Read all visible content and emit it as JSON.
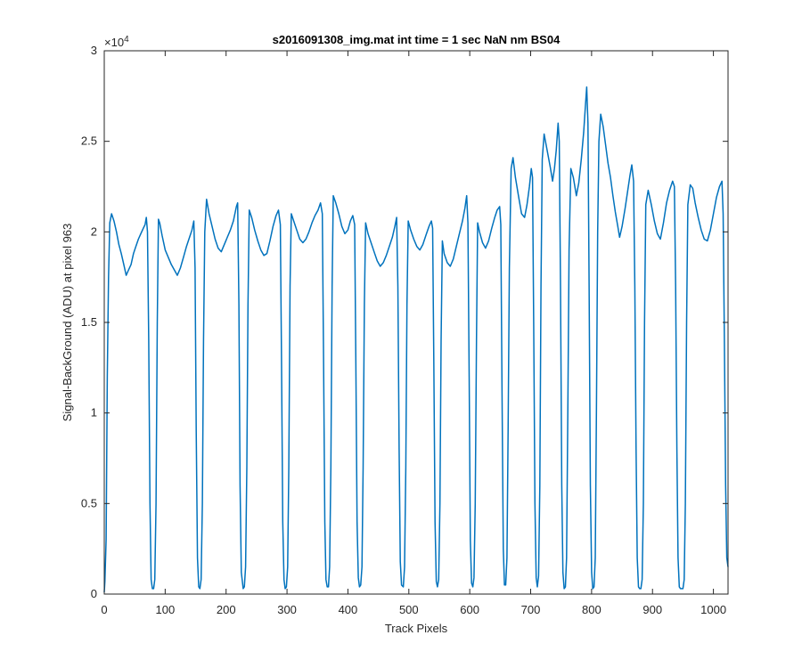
{
  "chart_data": {
    "type": "line",
    "title": "s2016091308_img.mat int time = 1 sec  NaN nm BS04",
    "xlabel": "Track Pixels",
    "ylabel": "Signal-BackGround (ADU) at pixel 963",
    "y_multiplier_label": "×10",
    "y_multiplier_exponent": "4",
    "xlim": [
      0,
      1024
    ],
    "ylim": [
      0,
      30000
    ],
    "x_ticks": [
      0,
      100,
      200,
      300,
      400,
      500,
      600,
      700,
      800,
      900,
      1000
    ],
    "y_ticks": [
      0,
      5000,
      10000,
      15000,
      20000,
      25000,
      30000
    ],
    "x_tick_labels": [
      "0",
      "100",
      "200",
      "300",
      "400",
      "500",
      "600",
      "700",
      "800",
      "900",
      "1000"
    ],
    "y_tick_labels": [
      "0",
      "0.5",
      "1",
      "1.5",
      "2",
      "2.5",
      "3"
    ],
    "grid": false,
    "series": [
      {
        "color": "#0072BD",
        "points": [
          [
            0,
            100
          ],
          [
            1,
            700
          ],
          [
            3,
            3000
          ],
          [
            5,
            12000
          ],
          [
            7,
            17500
          ],
          [
            9,
            20500
          ],
          [
            12,
            21000
          ],
          [
            16,
            20600
          ],
          [
            20,
            20000
          ],
          [
            24,
            19300
          ],
          [
            28,
            18800
          ],
          [
            32,
            18200
          ],
          [
            36,
            17600
          ],
          [
            40,
            17900
          ],
          [
            44,
            18200
          ],
          [
            48,
            18800
          ],
          [
            52,
            19200
          ],
          [
            56,
            19600
          ],
          [
            60,
            19900
          ],
          [
            64,
            20200
          ],
          [
            67,
            20400
          ],
          [
            69,
            20800
          ],
          [
            71,
            20000
          ],
          [
            73,
            14000
          ],
          [
            75,
            5000
          ],
          [
            77,
            800
          ],
          [
            79,
            300
          ],
          [
            81,
            300
          ],
          [
            83,
            800
          ],
          [
            85,
            5000
          ],
          [
            87,
            15000
          ],
          [
            89,
            20700
          ],
          [
            91,
            20500
          ],
          [
            95,
            19800
          ],
          [
            100,
            19000
          ],
          [
            105,
            18600
          ],
          [
            110,
            18200
          ],
          [
            115,
            17900
          ],
          [
            120,
            17600
          ],
          [
            125,
            18000
          ],
          [
            130,
            18600
          ],
          [
            135,
            19200
          ],
          [
            140,
            19700
          ],
          [
            144,
            20100
          ],
          [
            147,
            20600
          ],
          [
            149,
            18000
          ],
          [
            151,
            9000
          ],
          [
            153,
            2000
          ],
          [
            155,
            400
          ],
          [
            157,
            300
          ],
          [
            159,
            800
          ],
          [
            161,
            5000
          ],
          [
            163,
            14000
          ],
          [
            165,
            20000
          ],
          [
            168,
            21800
          ],
          [
            172,
            21000
          ],
          [
            177,
            20300
          ],
          [
            182,
            19600
          ],
          [
            187,
            19100
          ],
          [
            192,
            18900
          ],
          [
            197,
            19300
          ],
          [
            202,
            19700
          ],
          [
            207,
            20100
          ],
          [
            212,
            20600
          ],
          [
            217,
            21400
          ],
          [
            219,
            21600
          ],
          [
            221,
            16000
          ],
          [
            223,
            6000
          ],
          [
            225,
            1200
          ],
          [
            228,
            300
          ],
          [
            230,
            400
          ],
          [
            232,
            1500
          ],
          [
            234,
            7000
          ],
          [
            236,
            16000
          ],
          [
            238,
            21200
          ],
          [
            242,
            20800
          ],
          [
            247,
            20100
          ],
          [
            252,
            19500
          ],
          [
            257,
            19000
          ],
          [
            262,
            18700
          ],
          [
            267,
            18800
          ],
          [
            272,
            19500
          ],
          [
            277,
            20300
          ],
          [
            282,
            20900
          ],
          [
            286,
            21200
          ],
          [
            289,
            20400
          ],
          [
            291,
            13000
          ],
          [
            293,
            4000
          ],
          [
            295,
            800
          ],
          [
            297,
            300
          ],
          [
            299,
            400
          ],
          [
            301,
            1500
          ],
          [
            303,
            7000
          ],
          [
            305,
            17000
          ],
          [
            307,
            21000
          ],
          [
            311,
            20600
          ],
          [
            316,
            20100
          ],
          [
            321,
            19600
          ],
          [
            326,
            19400
          ],
          [
            331,
            19600
          ],
          [
            336,
            20000
          ],
          [
            341,
            20500
          ],
          [
            346,
            20900
          ],
          [
            351,
            21200
          ],
          [
            355,
            21600
          ],
          [
            358,
            21000
          ],
          [
            360,
            13000
          ],
          [
            362,
            4000
          ],
          [
            364,
            800
          ],
          [
            366,
            400
          ],
          [
            368,
            400
          ],
          [
            370,
            1500
          ],
          [
            372,
            7000
          ],
          [
            374,
            17000
          ],
          [
            376,
            22000
          ],
          [
            380,
            21600
          ],
          [
            385,
            21000
          ],
          [
            390,
            20300
          ],
          [
            395,
            19900
          ],
          [
            400,
            20100
          ],
          [
            404,
            20600
          ],
          [
            408,
            20900
          ],
          [
            411,
            20400
          ],
          [
            413,
            13000
          ],
          [
            415,
            4000
          ],
          [
            417,
            900
          ],
          [
            419,
            400
          ],
          [
            421,
            500
          ],
          [
            423,
            1500
          ],
          [
            425,
            7000
          ],
          [
            427,
            16000
          ],
          [
            429,
            20500
          ],
          [
            433,
            19900
          ],
          [
            438,
            19400
          ],
          [
            443,
            18900
          ],
          [
            448,
            18400
          ],
          [
            453,
            18100
          ],
          [
            458,
            18300
          ],
          [
            463,
            18700
          ],
          [
            468,
            19200
          ],
          [
            473,
            19700
          ],
          [
            477,
            20300
          ],
          [
            480,
            20800
          ],
          [
            482,
            17000
          ],
          [
            484,
            8000
          ],
          [
            486,
            1800
          ],
          [
            488,
            500
          ],
          [
            491,
            400
          ],
          [
            493,
            1500
          ],
          [
            495,
            7000
          ],
          [
            497,
            16000
          ],
          [
            499,
            20600
          ],
          [
            503,
            20100
          ],
          [
            508,
            19600
          ],
          [
            513,
            19200
          ],
          [
            518,
            19000
          ],
          [
            523,
            19300
          ],
          [
            528,
            19800
          ],
          [
            533,
            20300
          ],
          [
            537,
            20600
          ],
          [
            539,
            20200
          ],
          [
            541,
            13000
          ],
          [
            543,
            4000
          ],
          [
            545,
            700
          ],
          [
            547,
            400
          ],
          [
            549,
            800
          ],
          [
            551,
            5000
          ],
          [
            553,
            14000
          ],
          [
            555,
            19500
          ],
          [
            558,
            18800
          ],
          [
            563,
            18300
          ],
          [
            568,
            18100
          ],
          [
            573,
            18500
          ],
          [
            578,
            19200
          ],
          [
            583,
            19900
          ],
          [
            588,
            20600
          ],
          [
            592,
            21300
          ],
          [
            595,
            22000
          ],
          [
            597,
            20500
          ],
          [
            599,
            12000
          ],
          [
            601,
            3000
          ],
          [
            603,
            600
          ],
          [
            605,
            400
          ],
          [
            607,
            900
          ],
          [
            609,
            5000
          ],
          [
            611,
            14000
          ],
          [
            613,
            20500
          ],
          [
            616,
            20000
          ],
          [
            621,
            19400
          ],
          [
            626,
            19100
          ],
          [
            631,
            19500
          ],
          [
            636,
            20200
          ],
          [
            641,
            20800
          ],
          [
            645,
            21200
          ],
          [
            649,
            21400
          ],
          [
            651,
            20400
          ],
          [
            653,
            11000
          ],
          [
            655,
            2500
          ],
          [
            657,
            500
          ],
          [
            659,
            500
          ],
          [
            661,
            2000
          ],
          [
            663,
            9000
          ],
          [
            665,
            18000
          ],
          [
            668,
            23500
          ],
          [
            671,
            24100
          ],
          [
            675,
            23000
          ],
          [
            680,
            22000
          ],
          [
            685,
            21000
          ],
          [
            690,
            20800
          ],
          [
            694,
            21500
          ],
          [
            698,
            22500
          ],
          [
            701,
            23500
          ],
          [
            703,
            23000
          ],
          [
            705,
            15000
          ],
          [
            707,
            5000
          ],
          [
            709,
            900
          ],
          [
            711,
            400
          ],
          [
            713,
            1000
          ],
          [
            715,
            6000
          ],
          [
            717,
            17000
          ],
          [
            719,
            24000
          ],
          [
            722,
            25400
          ],
          [
            727,
            24500
          ],
          [
            732,
            23600
          ],
          [
            736,
            22800
          ],
          [
            739,
            23500
          ],
          [
            742,
            24500
          ],
          [
            745,
            26000
          ],
          [
            747,
            25000
          ],
          [
            749,
            17000
          ],
          [
            751,
            6000
          ],
          [
            753,
            1200
          ],
          [
            755,
            300
          ],
          [
            757,
            400
          ],
          [
            759,
            2000
          ],
          [
            761,
            10000
          ],
          [
            763,
            19000
          ],
          [
            766,
            23500
          ],
          [
            770,
            23000
          ],
          [
            775,
            22000
          ],
          [
            779,
            22700
          ],
          [
            783,
            24000
          ],
          [
            787,
            25500
          ],
          [
            790,
            27000
          ],
          [
            792,
            28000
          ],
          [
            794,
            26000
          ],
          [
            796,
            17000
          ],
          [
            798,
            6000
          ],
          [
            800,
            1200
          ],
          [
            802,
            300
          ],
          [
            804,
            400
          ],
          [
            806,
            2000
          ],
          [
            808,
            10000
          ],
          [
            810,
            20000
          ],
          [
            812,
            25000
          ],
          [
            815,
            26500
          ],
          [
            819,
            25800
          ],
          [
            823,
            24800
          ],
          [
            827,
            23800
          ],
          [
            831,
            23000
          ],
          [
            835,
            22000
          ],
          [
            839,
            21100
          ],
          [
            843,
            20300
          ],
          [
            846,
            19700
          ],
          [
            850,
            20300
          ],
          [
            855,
            21300
          ],
          [
            859,
            22200
          ],
          [
            863,
            23100
          ],
          [
            866,
            23700
          ],
          [
            869,
            22800
          ],
          [
            871,
            17000
          ],
          [
            873,
            8000
          ],
          [
            875,
            2000
          ],
          [
            877,
            400
          ],
          [
            879,
            300
          ],
          [
            881,
            300
          ],
          [
            883,
            800
          ],
          [
            885,
            5000
          ],
          [
            887,
            15000
          ],
          [
            889,
            21500
          ],
          [
            893,
            22300
          ],
          [
            898,
            21500
          ],
          [
            903,
            20600
          ],
          [
            908,
            19900
          ],
          [
            913,
            19600
          ],
          [
            918,
            20500
          ],
          [
            923,
            21600
          ],
          [
            928,
            22300
          ],
          [
            933,
            22800
          ],
          [
            936,
            22500
          ],
          [
            938,
            17000
          ],
          [
            940,
            8000
          ],
          [
            942,
            2000
          ],
          [
            944,
            400
          ],
          [
            946,
            300
          ],
          [
            948,
            300
          ],
          [
            950,
            300
          ],
          [
            952,
            800
          ],
          [
            954,
            5000
          ],
          [
            956,
            15000
          ],
          [
            958,
            21500
          ],
          [
            962,
            22600
          ],
          [
            966,
            22400
          ],
          [
            970,
            21600
          ],
          [
            975,
            20800
          ],
          [
            980,
            20100
          ],
          [
            985,
            19600
          ],
          [
            990,
            19500
          ],
          [
            995,
            20100
          ],
          [
            1000,
            21000
          ],
          [
            1005,
            21900
          ],
          [
            1010,
            22500
          ],
          [
            1014,
            22800
          ],
          [
            1016,
            21000
          ],
          [
            1018,
            14000
          ],
          [
            1020,
            6000
          ],
          [
            1022,
            2000
          ],
          [
            1024,
            1500
          ]
        ]
      }
    ]
  }
}
